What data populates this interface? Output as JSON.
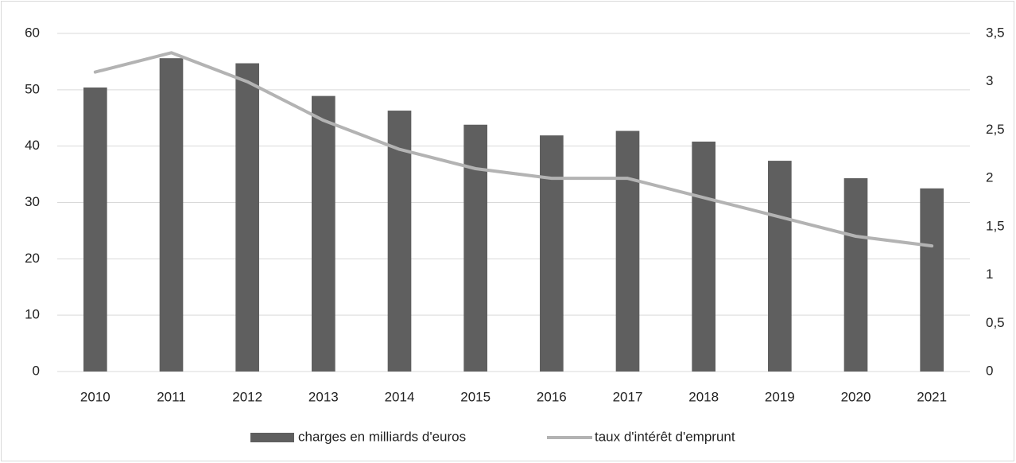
{
  "chart_data": {
    "type": "combo",
    "categories": [
      "2010",
      "2011",
      "2012",
      "2013",
      "2014",
      "2015",
      "2016",
      "2017",
      "2018",
      "2019",
      "2020",
      "2021"
    ],
    "series": [
      {
        "name": "charges en milliards d'euros",
        "type": "bar",
        "color": "#5f5f5f",
        "values": [
          50.4,
          55.6,
          54.7,
          48.9,
          46.3,
          43.8,
          41.9,
          42.7,
          40.8,
          37.4,
          34.3,
          32.5
        ]
      },
      {
        "name": "taux d'intérêt d'emprunt",
        "type": "line",
        "axis": "y2",
        "color": "#b3b3b3",
        "values": [
          3.1,
          3.3,
          3.0,
          2.6,
          2.3,
          2.1,
          2.0,
          2.0,
          1.8,
          1.6,
          1.4,
          1.3
        ]
      }
    ],
    "ylim": [
      0,
      60
    ],
    "yticks": [
      0,
      10,
      20,
      30,
      40,
      50,
      60
    ],
    "y2lim": [
      0,
      3.5
    ],
    "y2ticks": [
      0,
      {
        "value": 0.5,
        "label": "0,5"
      },
      1,
      {
        "value": 1.5,
        "label": "1,5"
      },
      2,
      {
        "value": 2.5,
        "label": "2,5"
      },
      3,
      {
        "value": 3.5,
        "label": "3,5"
      }
    ],
    "grid": true,
    "legend": "bottom"
  }
}
